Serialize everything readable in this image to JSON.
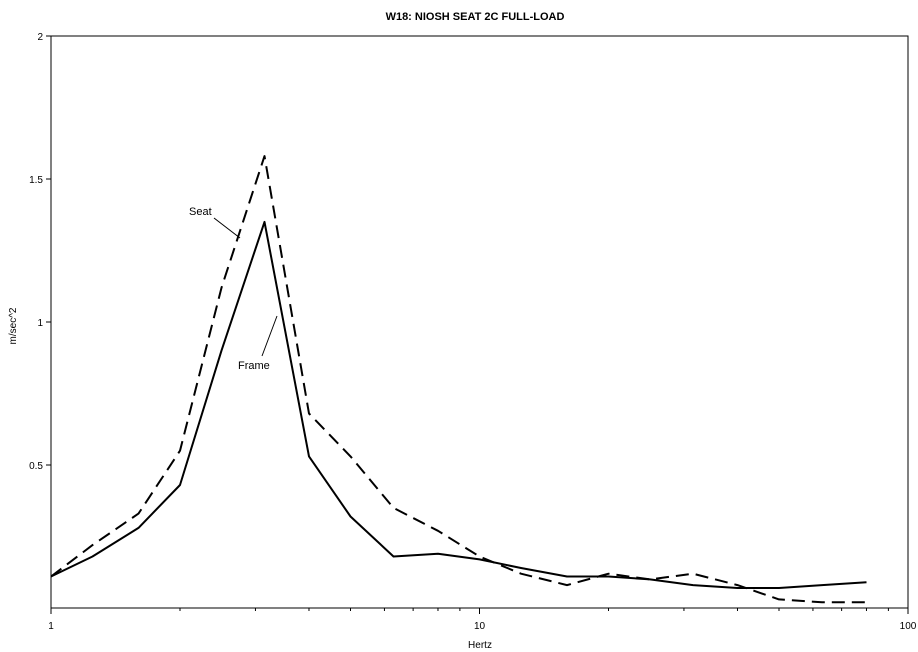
{
  "chart_data": {
    "type": "line",
    "title": "W18: NIOSH SEAT 2C FULL-LOAD",
    "xlabel": "Hertz",
    "ylabel": "m/sec^2",
    "xscale": "log",
    "xlim": [
      1,
      100
    ],
    "ylim": [
      0,
      2
    ],
    "xticks": [
      1,
      10,
      100
    ],
    "xtick_labels": [
      "1",
      "10",
      "100"
    ],
    "yticks": [
      0.5,
      1,
      1.5,
      2
    ],
    "ytick_labels": [
      "0.5",
      "1",
      "1.5",
      "2"
    ],
    "grid": false,
    "legend": "none",
    "series": [
      {
        "name": "Seat",
        "style": "dashed",
        "color": "#000000",
        "x": [
          1,
          1.25,
          1.6,
          2,
          2.5,
          3.15,
          4,
          5,
          6.3,
          8,
          10,
          12.5,
          16,
          20,
          25,
          31.5,
          40,
          50,
          63,
          80
        ],
        "y": [
          0.11,
          0.22,
          0.33,
          0.55,
          1.12,
          1.58,
          0.68,
          0.53,
          0.35,
          0.27,
          0.18,
          0.12,
          0.08,
          0.12,
          0.1,
          0.12,
          0.08,
          0.03,
          0.02,
          0.02
        ]
      },
      {
        "name": "Frame",
        "style": "solid",
        "color": "#000000",
        "x": [
          1,
          1.25,
          1.6,
          2,
          2.5,
          3.15,
          4,
          5,
          6.3,
          8,
          10,
          12.5,
          16,
          20,
          25,
          31.5,
          40,
          50,
          63,
          80
        ],
        "y": [
          0.11,
          0.18,
          0.28,
          0.43,
          0.9,
          1.35,
          0.53,
          0.32,
          0.18,
          0.19,
          0.17,
          0.14,
          0.11,
          0.11,
          0.1,
          0.08,
          0.07,
          0.07,
          0.08,
          0.09
        ]
      }
    ],
    "annotations": [
      {
        "text": "Seat",
        "series": "Seat"
      },
      {
        "text": "Frame",
        "series": "Frame"
      }
    ]
  }
}
